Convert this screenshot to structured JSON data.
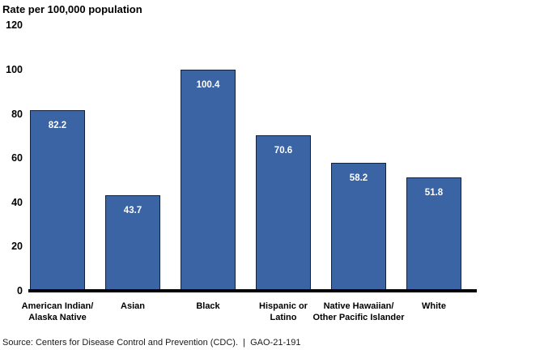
{
  "chart_data": {
    "type": "bar",
    "title": "Rate per 100,000 population",
    "categories": [
      "American Indian/\nAlaska Native",
      "Asian",
      "Black",
      "Hispanic or\nLatino",
      "Native Hawaiian/\nOther Pacific Islander",
      "White"
    ],
    "values": [
      82.2,
      43.7,
      100.4,
      70.6,
      58.2,
      51.8
    ],
    "xlabel": "",
    "ylabel": "Rate per 100,000 population",
    "yticks": [
      0,
      20,
      40,
      60,
      80,
      100,
      120
    ],
    "ylim": [
      0,
      120
    ],
    "grid": false,
    "legend": "none",
    "bar_color": "#3a64a4",
    "bar_border_color": "#14233d",
    "value_label_color": "#ffffff",
    "axis_color": "#000000"
  },
  "footer": {
    "source_text": "Source: Centers for Disease Control and Prevention (CDC).  |  GAO-21-191"
  }
}
